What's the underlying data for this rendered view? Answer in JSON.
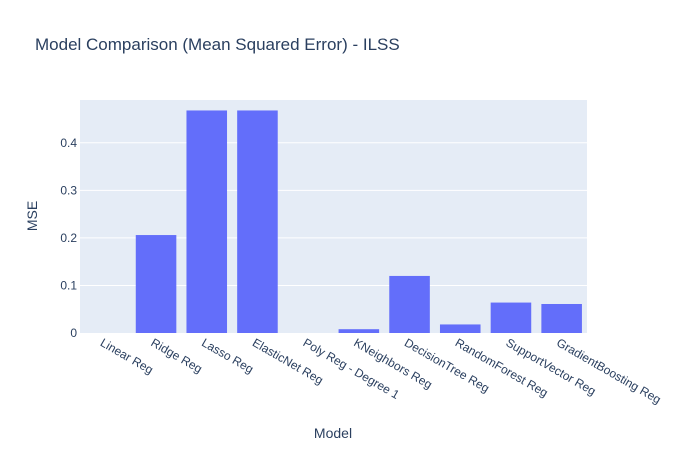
{
  "chart_data": {
    "type": "bar",
    "title": "Model Comparison (Mean Squared Error) - ILSS",
    "xlabel": "Model",
    "ylabel": "MSE",
    "categories": [
      "Linear Reg",
      "Ridge Reg",
      "Lasso Reg",
      "ElasticNet Reg",
      "Poly Reg - Degree 1",
      "KNeighbors Reg",
      "DecisionTree Reg",
      "RandomForest Reg",
      "SupportVector Reg",
      "GradientBoosting Reg"
    ],
    "values": [
      0.0,
      0.206,
      0.468,
      0.468,
      0.0,
      0.008,
      0.12,
      0.018,
      0.064,
      0.061
    ],
    "ylim": [
      0,
      0.49
    ],
    "yticks": [
      0,
      0.1,
      0.2,
      0.3,
      0.4
    ],
    "ytick_labels": [
      "0",
      "0.1",
      "0.2",
      "0.3",
      "0.4"
    ],
    "grid": true,
    "bar_color": "#636efa",
    "plot_background": "#e5ecf6",
    "text_color": "#2a3f5f"
  }
}
